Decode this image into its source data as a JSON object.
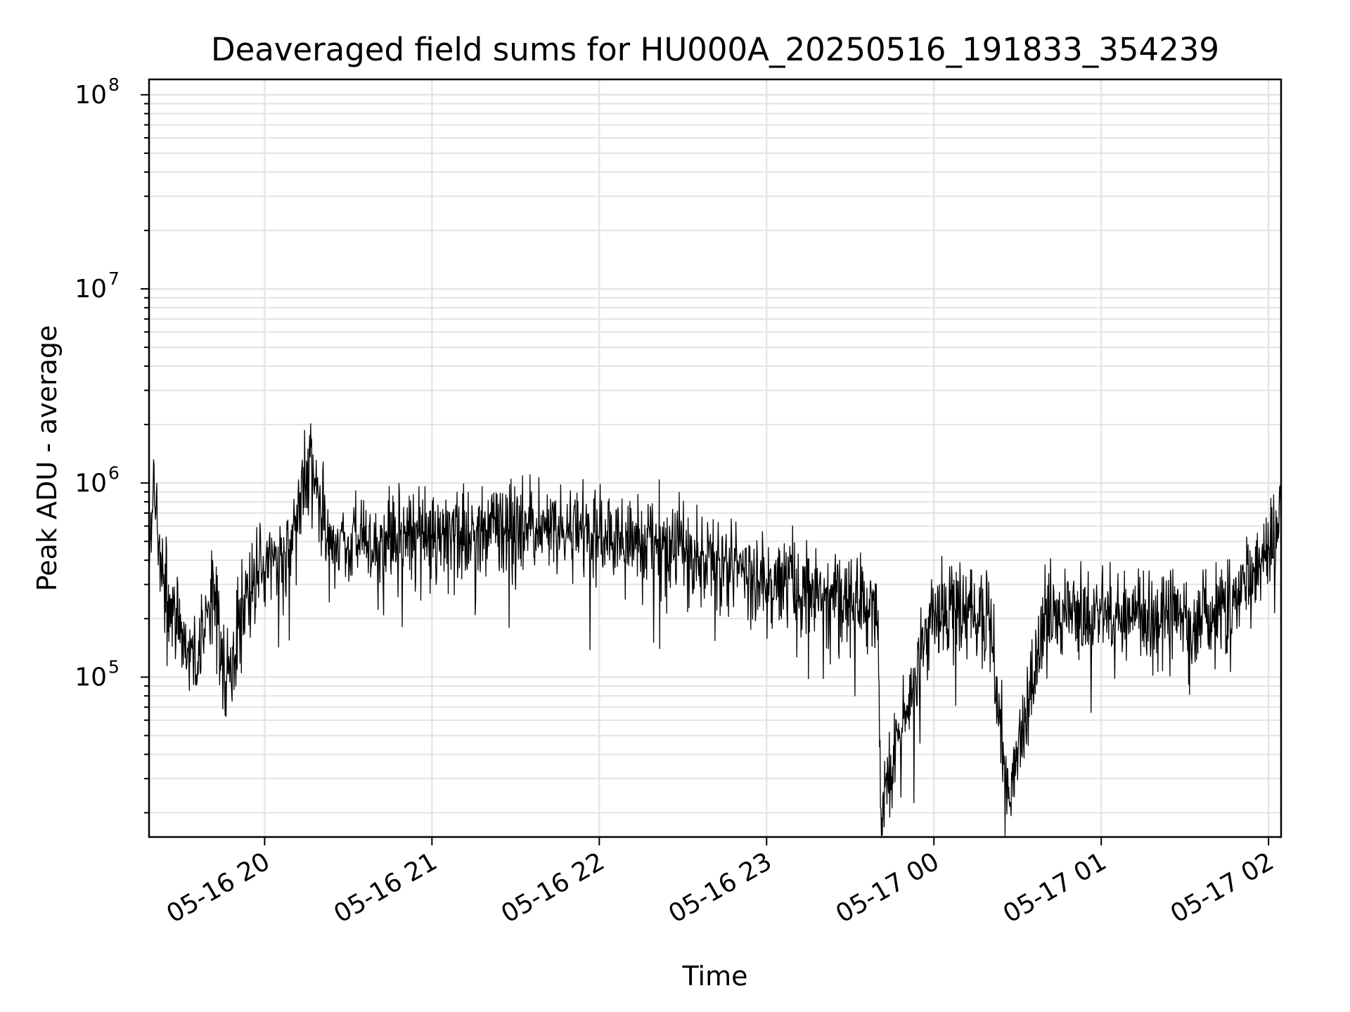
{
  "chart_data": {
    "type": "line",
    "title": "Deaveraged field sums for HU000A_20250516_191833_354239",
    "xlabel": "Time",
    "ylabel": "Peak ADU - average",
    "yscale": "log",
    "ylim": [
      15000,
      120000000
    ],
    "xlim": [
      "2025-05-16 19:18:33",
      "2025-05-17 02:04:30"
    ],
    "grid": true,
    "legend": "none",
    "line_color": "#000000",
    "x_ticks": [
      {
        "value": "2025-05-16 20:00",
        "label": "05-16 20"
      },
      {
        "value": "2025-05-16 21:00",
        "label": "05-16 21"
      },
      {
        "value": "2025-05-16 22:00",
        "label": "05-16 22"
      },
      {
        "value": "2025-05-16 23:00",
        "label": "05-16 23"
      },
      {
        "value": "2025-05-17 00:00",
        "label": "05-17 00"
      },
      {
        "value": "2025-05-17 01:00",
        "label": "05-17 01"
      },
      {
        "value": "2025-05-17 02:00",
        "label": "05-17 02"
      }
    ],
    "y_ticks": [
      {
        "value": 100000,
        "base": "10",
        "exp": "5"
      },
      {
        "value": 1000000,
        "base": "10",
        "exp": "6"
      },
      {
        "value": 10000000,
        "base": "10",
        "exp": "7"
      },
      {
        "value": 100000000,
        "base": "10",
        "exp": "8"
      }
    ],
    "series": [
      {
        "points": [
          [
            "2025-05-16 19:18:33",
            400000
          ],
          [
            "2025-05-16 19:20:00",
            950000
          ],
          [
            "2025-05-16 19:24:00",
            280000
          ],
          [
            "2025-05-16 19:30:00",
            170000
          ],
          [
            "2025-05-16 19:36:00",
            120000
          ],
          [
            "2025-05-16 19:42:00",
            300000
          ],
          [
            "2025-05-16 19:46:00",
            95000
          ],
          [
            "2025-05-16 19:52:00",
            250000
          ],
          [
            "2025-05-16 20:00:00",
            350000
          ],
          [
            "2025-05-16 20:10:00",
            450000
          ],
          [
            "2025-05-16 20:15:00",
            1300000
          ],
          [
            "2025-05-16 20:25:00",
            500000
          ],
          [
            "2025-05-16 20:40:00",
            480000
          ],
          [
            "2025-05-16 20:50:00",
            550000
          ],
          [
            "2025-05-16 21:00:00",
            520000
          ],
          [
            "2025-05-16 21:20:00",
            550000
          ],
          [
            "2025-05-16 21:35:00",
            580000
          ],
          [
            "2025-05-16 21:50:00",
            560000
          ],
          [
            "2025-05-16 22:00:00",
            520000
          ],
          [
            "2025-05-16 22:20:00",
            480000
          ],
          [
            "2025-05-16 22:40:00",
            420000
          ],
          [
            "2025-05-16 23:00:00",
            320000
          ],
          [
            "2025-05-16 23:20:00",
            270000
          ],
          [
            "2025-05-16 23:40:00",
            220000
          ],
          [
            "2025-05-16 23:41:00",
            21000
          ],
          [
            "2025-05-17 00:00:00",
            220000
          ],
          [
            "2025-05-17 00:20:00",
            200000
          ],
          [
            "2025-05-17 00:27:00",
            23000
          ],
          [
            "2025-05-17 00:40:00",
            210000
          ],
          [
            "2025-05-17 01:00:00",
            220000
          ],
          [
            "2025-05-17 01:20:00",
            210000
          ],
          [
            "2025-05-17 01:40:00",
            190000
          ],
          [
            "2025-05-17 01:55:00",
            350000
          ],
          [
            "2025-05-17 02:04:30",
            600000
          ]
        ]
      }
    ]
  }
}
